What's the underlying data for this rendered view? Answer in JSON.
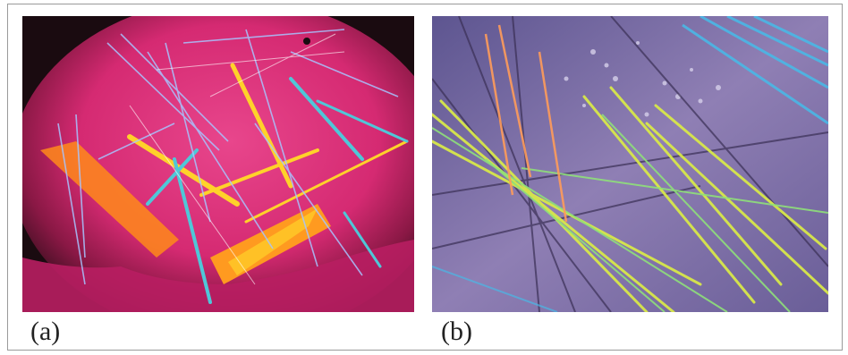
{
  "figure": {
    "panels": [
      {
        "label": "(a)",
        "background_color": "#e0307a",
        "vignette_color": "#1a0b10",
        "crystal_colors": [
          "#ff8a1a",
          "#ffd22a",
          "#4fc7d8",
          "#a7c4ff",
          "#ffffff"
        ]
      },
      {
        "label": "(b)",
        "background_color": "#8f7fb4",
        "crystal_colors": [
          "#d8e84a",
          "#8fe07a",
          "#ff9c5a",
          "#3a2f55",
          "#4ab8e6"
        ]
      }
    ]
  }
}
